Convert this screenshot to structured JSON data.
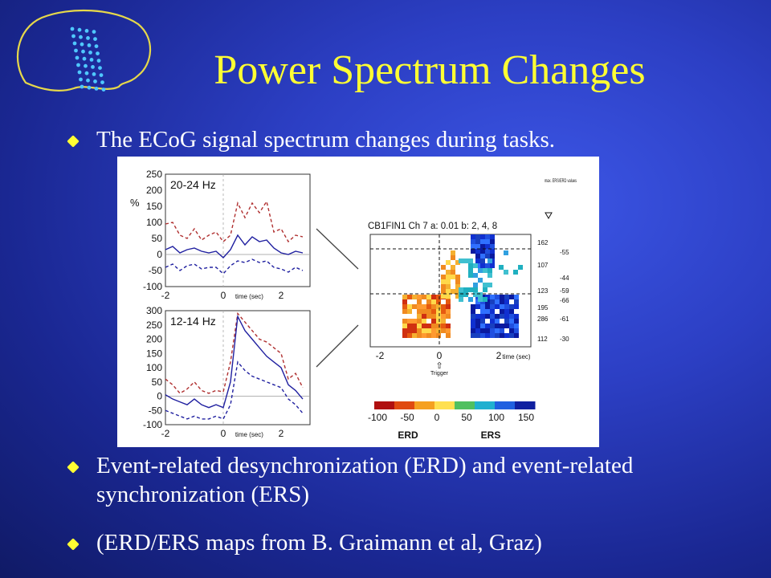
{
  "title": "Power Spectrum Changes",
  "bullets": [
    "The ECoG signal spectrum changes during tasks.",
    "Event-related desynchronization (ERD) and event-related synchronization (ERS)",
    "(ERD/ERS maps from B. Graimann et al, Graz)"
  ],
  "colors": {
    "title": "#ffff33",
    "bullet_mark": "#ffff33",
    "background": "#2c3fc4",
    "text": "#ffffff"
  },
  "logo": {
    "icon": "brain-electrode-grid-icon"
  },
  "chart_data": [
    {
      "type": "line",
      "title": "20-24 Hz",
      "ylabel": "%",
      "xlabel": "time (sec)",
      "xlim": [
        -2,
        3
      ],
      "ylim": [
        -100,
        250
      ],
      "xticks": [
        "-2",
        "0",
        "2"
      ],
      "yticks": [
        "250",
        "200",
        "150",
        "100",
        "50",
        "0",
        "-50",
        "-100"
      ],
      "x": [
        -2,
        -1.75,
        -1.5,
        -1.25,
        -1,
        -0.75,
        -0.5,
        -0.25,
        0,
        0.25,
        0.5,
        0.75,
        1,
        1.25,
        1.5,
        1.75,
        2,
        2.25,
        2.5,
        2.75
      ],
      "series": [
        {
          "color": "#b03030",
          "style": "dashed",
          "values": [
            95,
            100,
            60,
            50,
            80,
            45,
            60,
            70,
            40,
            60,
            160,
            115,
            160,
            130,
            165,
            70,
            80,
            40,
            60,
            55
          ]
        },
        {
          "color": "#2020a0",
          "style": "solid",
          "values": [
            15,
            25,
            5,
            15,
            20,
            10,
            5,
            10,
            -10,
            15,
            60,
            30,
            55,
            40,
            45,
            20,
            5,
            0,
            10,
            5
          ]
        },
        {
          "color": "#2020a0",
          "style": "dashed",
          "values": [
            -40,
            -30,
            -50,
            -35,
            -30,
            -45,
            -40,
            -40,
            -60,
            -35,
            -20,
            -25,
            -15,
            -25,
            -20,
            -40,
            -45,
            -55,
            -40,
            -50
          ]
        }
      ]
    },
    {
      "type": "line",
      "title": "12-14 Hz",
      "xlabel": "time (sec)",
      "xlim": [
        -2,
        3
      ],
      "ylim": [
        -100,
        300
      ],
      "xticks": [
        "-2",
        "0",
        "2"
      ],
      "yticks": [
        "300",
        "250",
        "200",
        "150",
        "100",
        "50",
        "0",
        "-50",
        "-100"
      ],
      "x": [
        -2,
        -1.75,
        -1.5,
        -1.25,
        -1,
        -0.75,
        -0.5,
        -0.25,
        0,
        0.25,
        0.5,
        0.75,
        1,
        1.25,
        1.5,
        1.75,
        2,
        2.25,
        2.5,
        2.75
      ],
      "series": [
        {
          "color": "#b03030",
          "style": "dashed",
          "values": [
            60,
            40,
            10,
            25,
            50,
            20,
            10,
            20,
            15,
            120,
            290,
            260,
            230,
            200,
            190,
            170,
            150,
            60,
            80,
            30
          ]
        },
        {
          "color": "#2020a0",
          "style": "solid",
          "values": [
            5,
            -10,
            -20,
            -30,
            -10,
            -30,
            -40,
            -30,
            -40,
            50,
            280,
            230,
            200,
            170,
            140,
            120,
            100,
            40,
            20,
            -10
          ]
        },
        {
          "color": "#2020a0",
          "style": "dashed",
          "values": [
            -50,
            -60,
            -70,
            -80,
            -70,
            -80,
            -80,
            -70,
            -80,
            -30,
            120,
            90,
            70,
            60,
            50,
            40,
            30,
            -10,
            -30,
            -60
          ]
        }
      ]
    },
    {
      "type": "heatmap",
      "title": "CB1FIN1 Ch 7   a: 0.01 b: 2, 4, 8",
      "xlabel": "time (sec)",
      "xticks": [
        "-2",
        "0",
        "2"
      ],
      "x_annotation": "Trigger",
      "legend_note": "max. ERS/ERD values",
      "right_values": [
        "162",
        "107",
        "123",
        "195",
        "286",
        "112"
      ],
      "right_values_2": [
        "-55",
        "-44",
        "-59",
        "-66",
        "-61",
        "-30"
      ],
      "colorbar": {
        "ticks": [
          "-100",
          "-50",
          "0",
          "50",
          "100",
          "150"
        ],
        "labels": [
          "ERD",
          "ERS"
        ]
      }
    }
  ]
}
